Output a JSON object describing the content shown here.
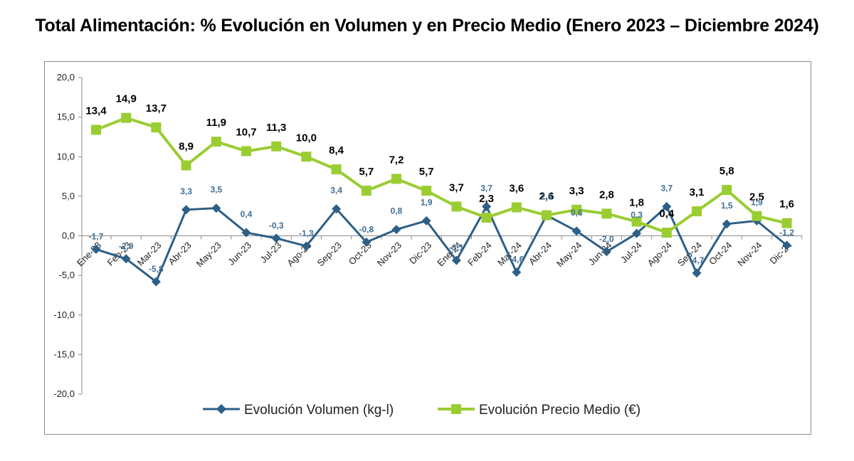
{
  "title": "Total Alimentación: % Evolución en Volumen y en Precio Medio (Enero 2023 – Diciembre 2024)",
  "chart_data": {
    "type": "line",
    "title": "Total Alimentación: % Evolución en Volumen y en Precio Medio (Enero 2023 – Diciembre 2024)",
    "categories": [
      "Ene-23",
      "Feb-23",
      "Mar-23",
      "Abr-23",
      "May-23",
      "Jun-23",
      "Jul-23",
      "Ago-23",
      "Sep-23",
      "Oct-23",
      "Nov-23",
      "Dic-23",
      "Ene-24",
      "Feb-24",
      "Mar-24",
      "Abr-24",
      "May-24",
      "Jun-24",
      "Jul-24",
      "Ago-24",
      "Sep-24",
      "Oct-24",
      "Nov-24",
      "Dic-24"
    ],
    "ylim": [
      -20,
      20
    ],
    "yticks": [
      "20,0",
      "15,0",
      "10,0",
      "5,0",
      "0,0",
      "-5,0",
      "-10,0",
      "-15,0",
      "-20,0"
    ],
    "series": [
      {
        "name": "Evolución Volumen (kg-l)",
        "color": "#2e5f86",
        "marker": "diamond",
        "values": [
          -1.7,
          -2.9,
          -5.8,
          3.3,
          3.5,
          0.4,
          -0.3,
          -1.3,
          3.4,
          -0.8,
          0.8,
          1.9,
          -3.1,
          3.7,
          -4.6,
          2.6,
          0.6,
          -2.0,
          0.3,
          3.7,
          -4.7,
          1.5,
          1.9,
          -1.2
        ],
        "labels": [
          "-1,7",
          "-2,9",
          "-5,8",
          "3,3",
          "3,5",
          "0,4",
          "-0,3",
          "-1,3",
          "3,4",
          "-0,8",
          "0,8",
          "1,9",
          "-3,1",
          "3,7",
          "-4,6",
          "2,6",
          "0,6",
          "-2,0",
          "0,3",
          "3,7",
          "-4,7",
          "1,5",
          "1,9",
          "-1,2"
        ]
      },
      {
        "name": "Evolución Precio Medio (€)",
        "color": "#9acd32",
        "marker": "square",
        "values": [
          13.4,
          14.9,
          13.7,
          8.9,
          11.9,
          10.7,
          11.3,
          10.0,
          8.4,
          5.7,
          7.2,
          5.7,
          3.7,
          2.3,
          3.6,
          2.6,
          3.3,
          2.8,
          1.8,
          0.4,
          3.1,
          5.8,
          2.5,
          1.6
        ],
        "labels": [
          "13,4",
          "14,9",
          "13,7",
          "8,9",
          "11,9",
          "10,7",
          "11,3",
          "10,0",
          "8,4",
          "5,7",
          "7,2",
          "5,7",
          "3,7",
          "2,3",
          "3,6",
          "2,6",
          "3,3",
          "2,8",
          "1,8",
          "0,4",
          "3,1",
          "5,8",
          "2,5",
          "1,6"
        ]
      }
    ],
    "legend_position": "bottom"
  }
}
